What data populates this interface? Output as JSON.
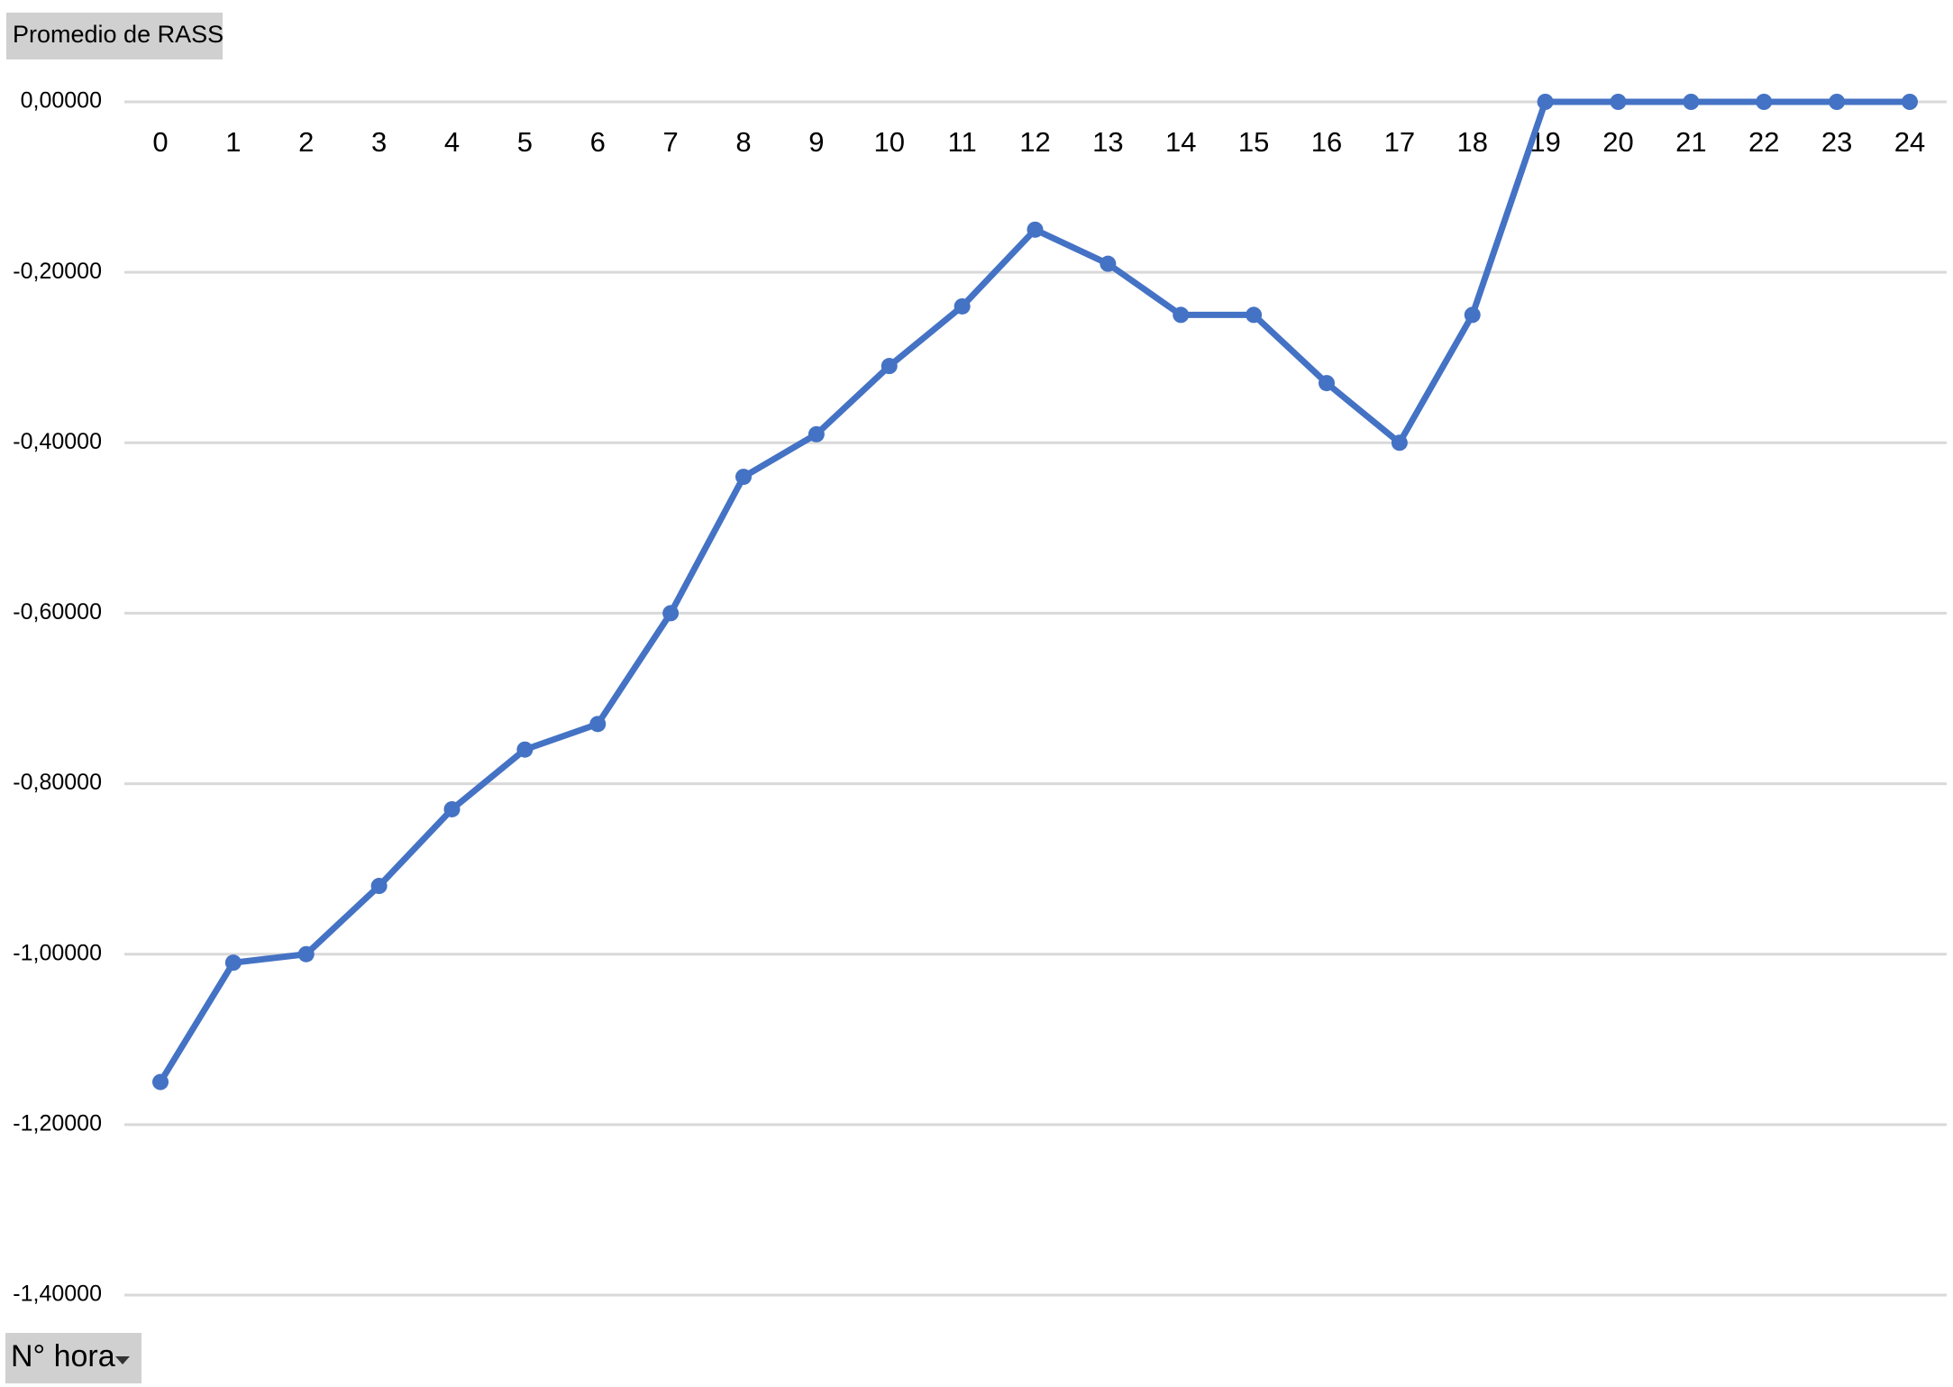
{
  "chart_data": {
    "type": "line",
    "title": "Promedio de RASS",
    "x_label": "N° hora",
    "categories": [
      "0",
      "1",
      "2",
      "3",
      "4",
      "5",
      "6",
      "7",
      "8",
      "9",
      "10",
      "11",
      "12",
      "13",
      "14",
      "15",
      "16",
      "17",
      "18",
      "19",
      "20",
      "21",
      "22",
      "23",
      "24"
    ],
    "series": [
      {
        "color": "#4472c4",
        "values": [
          -1.15,
          -1.01,
          -1.0,
          -0.92,
          -0.83,
          -0.76,
          -0.73,
          -0.6,
          -0.44,
          -0.39,
          -0.31,
          -0.24,
          -0.15,
          -0.19,
          -0.25,
          -0.25,
          -0.33,
          -0.4,
          -0.25,
          0,
          0,
          0,
          0,
          0,
          0
        ]
      }
    ],
    "ylim": [
      -1.4,
      0
    ],
    "yticks": [
      {
        "value": 0,
        "label": "0,00000"
      },
      {
        "value": -0.2,
        "label": "-0,20000"
      },
      {
        "value": -0.4,
        "label": "-0,40000"
      },
      {
        "value": -0.6,
        "label": "-0,60000"
      },
      {
        "value": -0.8,
        "label": "-0,80000"
      },
      {
        "value": -1.0,
        "label": "-1,00000"
      },
      {
        "value": -1.2,
        "label": "-1,20000"
      },
      {
        "value": -1.4,
        "label": "-1,40000"
      }
    ],
    "grid": true
  }
}
